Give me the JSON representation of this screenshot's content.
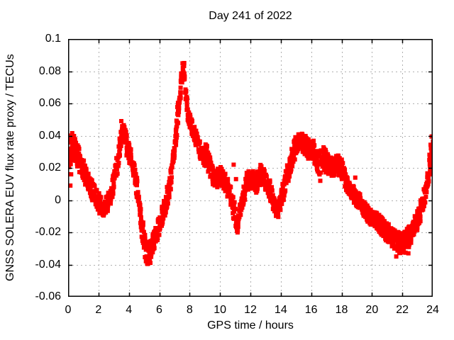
{
  "page": {
    "background": "#ffffff"
  },
  "chart_data": {
    "type": "scatter",
    "title": "Day 241 of 2022",
    "xlabel": "GPS time / hours",
    "ylabel": "GNSS SOLERA EUV flux rate proxy / TECUs",
    "xlim": [
      0,
      24
    ],
    "ylim": [
      -0.06,
      0.1
    ],
    "xticks": [
      "0",
      "2",
      "4",
      "6",
      "8",
      "10",
      "12",
      "14",
      "16",
      "18",
      "20",
      "22",
      "24"
    ],
    "yticks": [
      "0.1",
      "0.08",
      "0.06",
      "0.04",
      "0.02",
      "0",
      "-0.02",
      "-0.04",
      "-0.06"
    ],
    "grid": true,
    "grid_style": "dashed",
    "legend": null,
    "marker": "filled-square",
    "colors": {
      "data": "#ff0000",
      "grid": "#b0b0b0",
      "axis": "#000000",
      "text": "#000000"
    },
    "series": [
      {
        "name": "EUV flux rate proxy",
        "comment": "keypoints are [gps_hour, value_TECUs, band_halfwidth] of the dense scatter band read from the plot",
        "keypoints": [
          [
            0.0,
            0.026,
            0.013
          ],
          [
            0.3,
            0.034,
            0.008
          ],
          [
            0.6,
            0.028,
            0.007
          ],
          [
            1.0,
            0.019,
            0.006
          ],
          [
            1.5,
            0.008,
            0.006
          ],
          [
            2.0,
            -0.001,
            0.006
          ],
          [
            2.3,
            -0.006,
            0.005
          ],
          [
            2.6,
            -0.002,
            0.005
          ],
          [
            2.9,
            0.006,
            0.005
          ],
          [
            3.2,
            0.02,
            0.006
          ],
          [
            3.5,
            0.04,
            0.006
          ],
          [
            3.7,
            0.042,
            0.005
          ],
          [
            3.9,
            0.033,
            0.006
          ],
          [
            4.2,
            0.024,
            0.006
          ],
          [
            4.5,
            0.01,
            0.006
          ],
          [
            4.8,
            -0.013,
            0.007
          ],
          [
            5.1,
            -0.031,
            0.007
          ],
          [
            5.3,
            -0.035,
            0.007
          ],
          [
            5.6,
            -0.027,
            0.006
          ],
          [
            5.9,
            -0.018,
            0.006
          ],
          [
            6.2,
            -0.009,
            0.006
          ],
          [
            6.5,
            0.0,
            0.006
          ],
          [
            6.8,
            0.015,
            0.006
          ],
          [
            7.1,
            0.04,
            0.006
          ],
          [
            7.4,
            0.07,
            0.005
          ],
          [
            7.6,
            0.085,
            0.005
          ],
          [
            7.75,
            0.065,
            0.005
          ],
          [
            7.9,
            0.053,
            0.005
          ],
          [
            8.2,
            0.044,
            0.005
          ],
          [
            8.5,
            0.036,
            0.005
          ],
          [
            8.8,
            0.029,
            0.005
          ],
          [
            9.1,
            0.027,
            0.008
          ],
          [
            9.4,
            0.018,
            0.006
          ],
          [
            9.7,
            0.012,
            0.006
          ],
          [
            10.0,
            0.015,
            0.006
          ],
          [
            10.3,
            0.012,
            0.006
          ],
          [
            10.6,
            0.005,
            0.006
          ],
          [
            10.9,
            -0.005,
            0.006
          ],
          [
            11.1,
            -0.016,
            0.005
          ],
          [
            11.3,
            -0.01,
            0.005
          ],
          [
            11.5,
            0.002,
            0.006
          ],
          [
            11.8,
            0.012,
            0.006
          ],
          [
            12.1,
            0.013,
            0.006
          ],
          [
            12.4,
            0.01,
            0.006
          ],
          [
            12.7,
            0.016,
            0.006
          ],
          [
            13.0,
            0.012,
            0.006
          ],
          [
            13.3,
            0.006,
            0.006
          ],
          [
            13.6,
            -0.004,
            0.005
          ],
          [
            13.8,
            -0.006,
            0.005
          ],
          [
            14.1,
            0.003,
            0.006
          ],
          [
            14.4,
            0.014,
            0.006
          ],
          [
            14.7,
            0.024,
            0.006
          ],
          [
            15.0,
            0.035,
            0.006
          ],
          [
            15.3,
            0.037,
            0.005
          ],
          [
            15.6,
            0.034,
            0.006
          ],
          [
            15.9,
            0.031,
            0.006
          ],
          [
            16.2,
            0.03,
            0.007
          ],
          [
            16.5,
            0.022,
            0.007
          ],
          [
            16.8,
            0.026,
            0.007
          ],
          [
            17.1,
            0.022,
            0.006
          ],
          [
            17.4,
            0.02,
            0.006
          ],
          [
            17.7,
            0.023,
            0.006
          ],
          [
            18.0,
            0.019,
            0.006
          ],
          [
            18.3,
            0.011,
            0.005
          ],
          [
            18.6,
            0.006,
            0.005
          ],
          [
            19.0,
            0.001,
            0.005
          ],
          [
            19.4,
            -0.004,
            0.005
          ],
          [
            19.8,
            -0.009,
            0.005
          ],
          [
            20.2,
            -0.012,
            0.005
          ],
          [
            20.6,
            -0.016,
            0.006
          ],
          [
            21.0,
            -0.02,
            0.006
          ],
          [
            21.4,
            -0.024,
            0.006
          ],
          [
            21.8,
            -0.027,
            0.007
          ],
          [
            22.2,
            -0.026,
            0.007
          ],
          [
            22.6,
            -0.021,
            0.006
          ],
          [
            23.0,
            -0.012,
            0.006
          ],
          [
            23.3,
            -0.004,
            0.006
          ],
          [
            23.6,
            0.008,
            0.006
          ],
          [
            23.85,
            0.025,
            0.007
          ],
          [
            24.0,
            0.033,
            0.008
          ]
        ],
        "outliers": [
          [
            0.15,
            0.009
          ],
          [
            0.2,
            0.016
          ],
          [
            3.5,
            0.049
          ],
          [
            10.9,
            0.022
          ],
          [
            11.05,
            0.013
          ],
          [
            16.6,
            0.012
          ],
          [
            18.9,
            0.014
          ],
          [
            21.6,
            -0.035
          ],
          [
            22.4,
            -0.033
          ]
        ]
      }
    ],
    "render": {
      "marker_px": 6,
      "samples": 950,
      "points_per_sample": 2,
      "seed": 11
    }
  }
}
